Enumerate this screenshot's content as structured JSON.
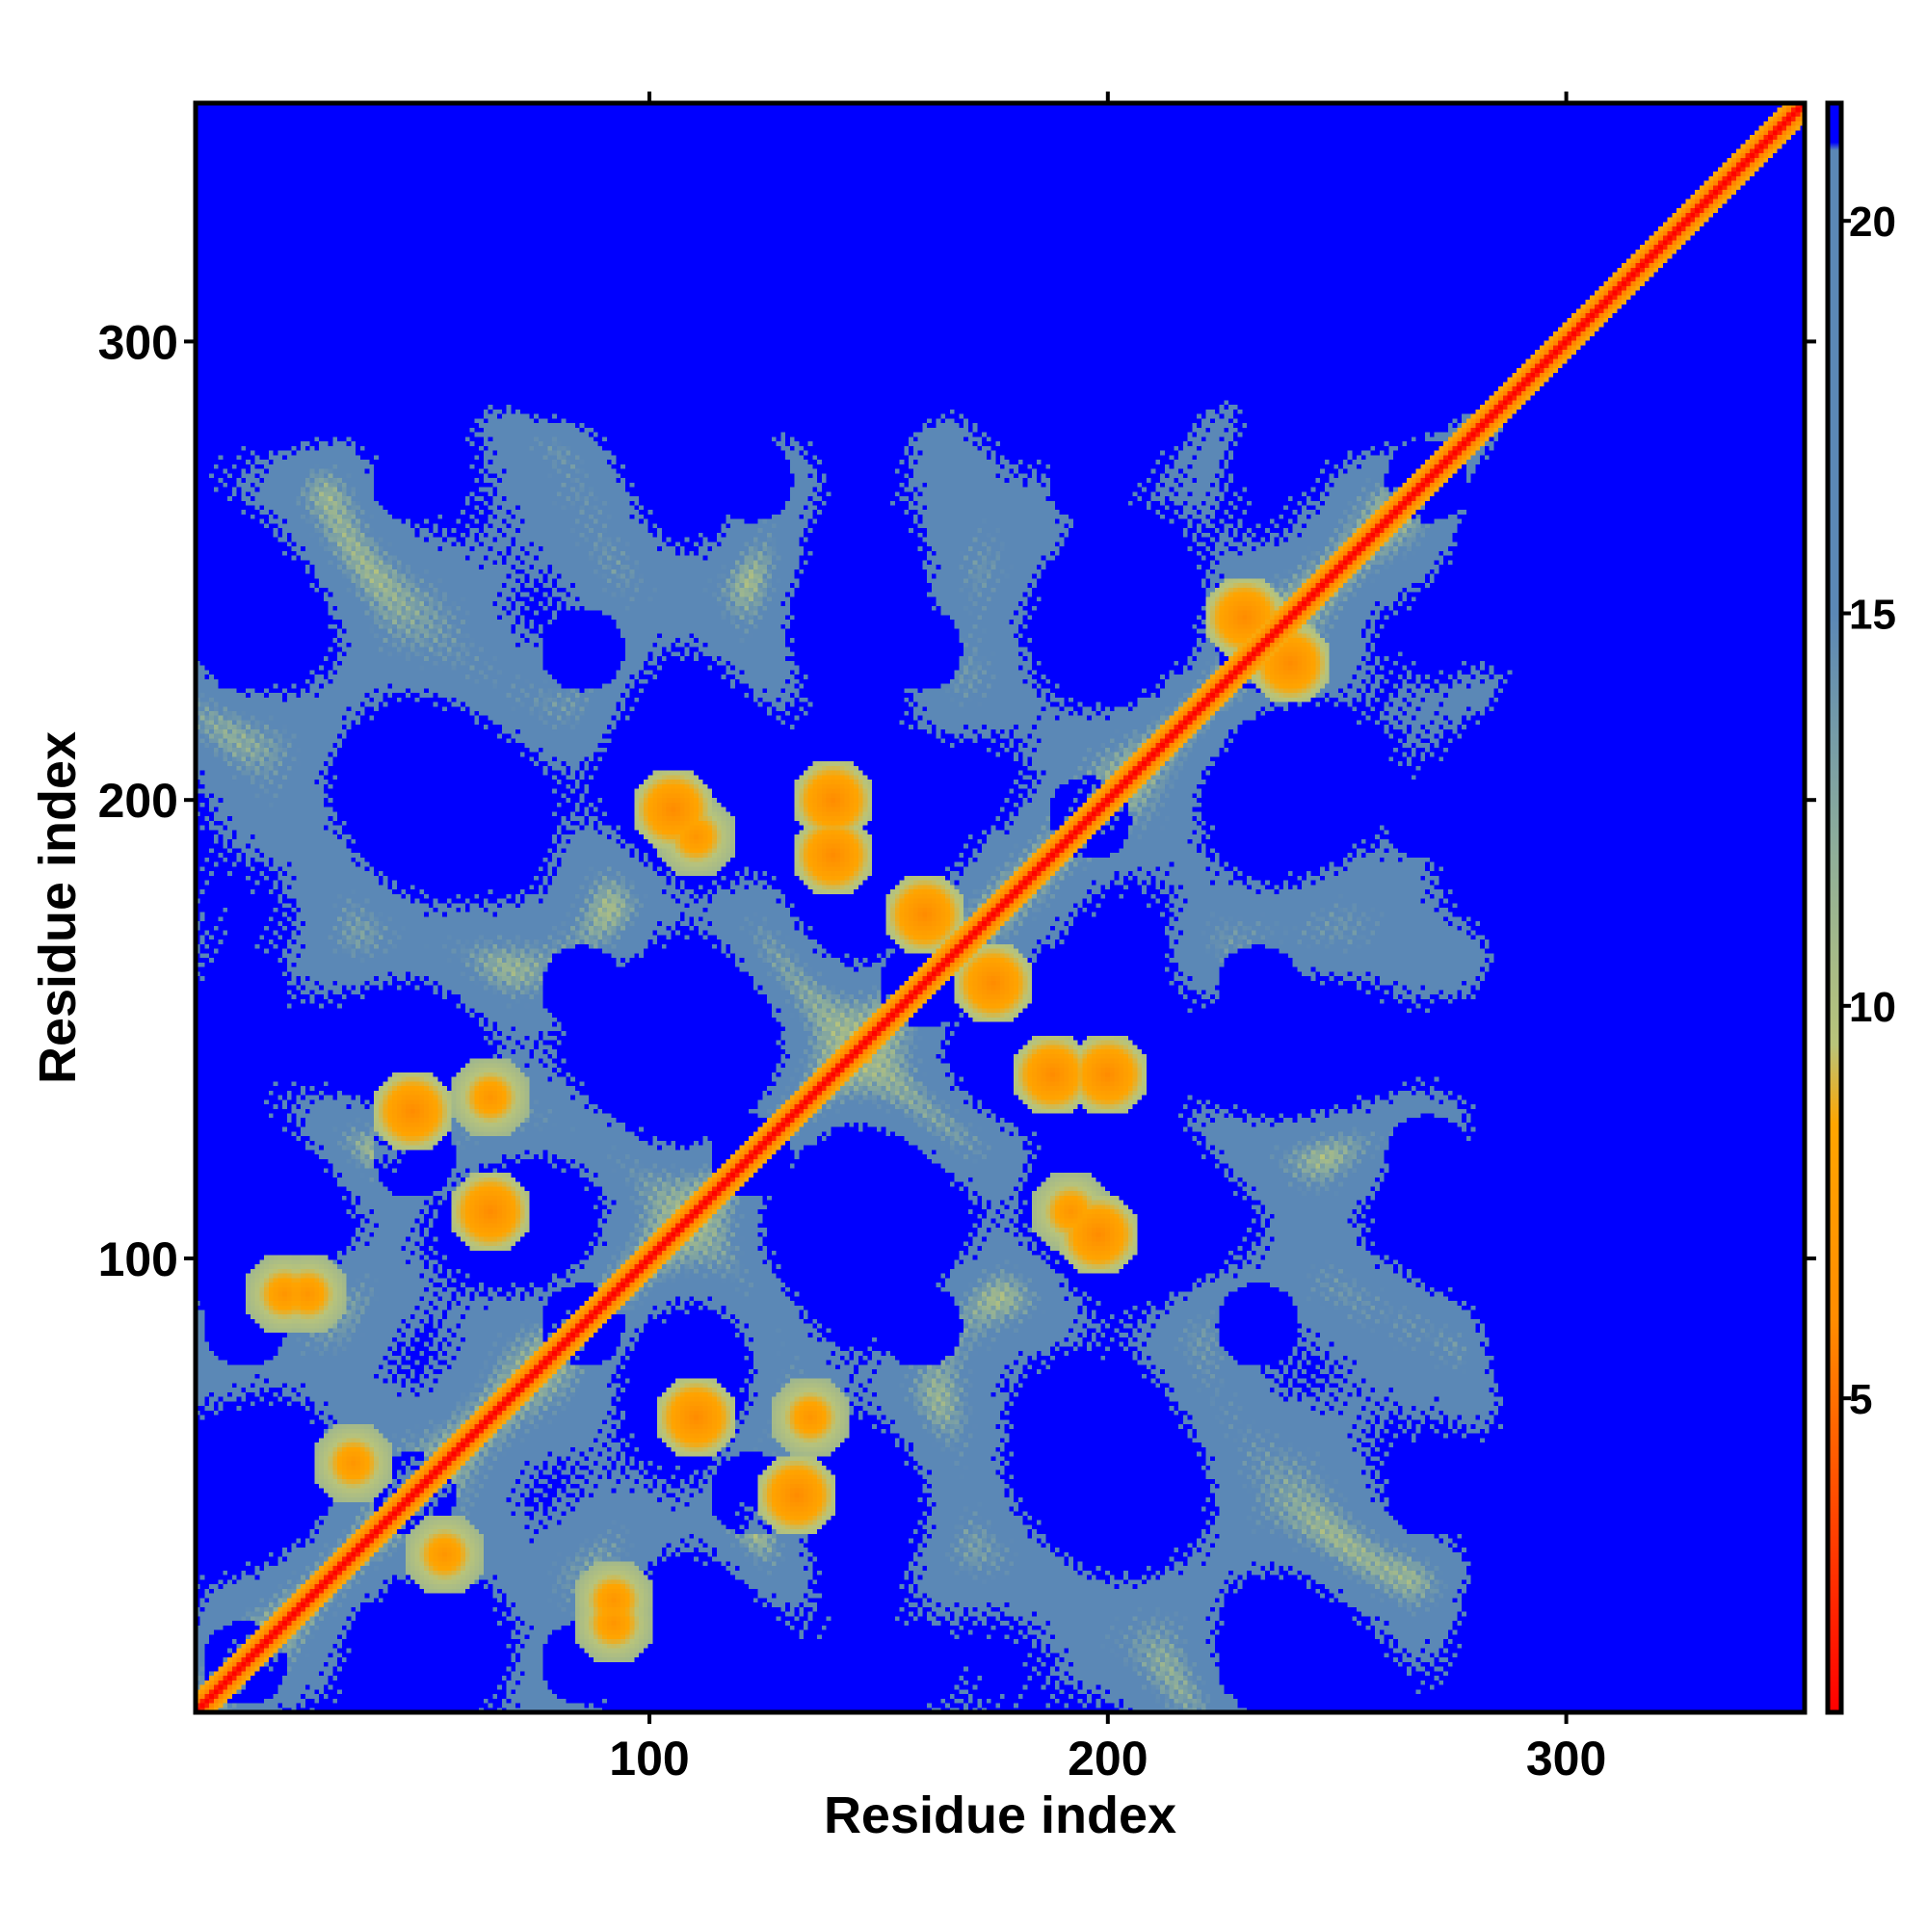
{
  "chart_data": {
    "type": "heatmap",
    "title": "",
    "xlabel": "Residue index",
    "ylabel": "Residue index",
    "n_residues": 352,
    "xlim": [
      1,
      352
    ],
    "ylim": [
      1,
      352
    ],
    "x_ticks": [
      100,
      200,
      300
    ],
    "y_ticks": [
      100,
      200,
      300
    ],
    "x_tick_labels": [
      "100",
      "200",
      "300"
    ],
    "y_tick_labels": [
      "100",
      "200",
      "300"
    ],
    "colorbar": {
      "range": [
        1,
        21.5
      ],
      "ticks": [
        5,
        10,
        15,
        20
      ],
      "tick_labels": [
        "5",
        "10",
        "15",
        "20"
      ],
      "stops": [
        {
          "value": 1,
          "color": "#ff0000"
        },
        {
          "value": 6,
          "color": "#ff8c00"
        },
        {
          "value": 8.5,
          "color": "#ffa500"
        },
        {
          "value": 9.5,
          "color": "#b9c47a"
        },
        {
          "value": 12,
          "color": "#8eae9a"
        },
        {
          "value": 15,
          "color": "#5b88b6"
        },
        {
          "value": 20.9,
          "color": "#5b88b6"
        },
        {
          "value": 21,
          "color": "#0000ff"
        },
        {
          "value": 21.5,
          "color": "#0000ff"
        }
      ]
    },
    "background_value": 21,
    "colors": {
      "background": "#0000ff",
      "contact_region": "#5b88b6",
      "close_contact": "#ffa500",
      "diagonal": "#ff0000"
    },
    "features": {
      "diagonal_band": [
        [
          1,
          1
        ],
        [
          352,
          352
        ]
      ],
      "off_diagonal_contacts": [
        {
          "i": 25,
          "j": 92,
          "value": 7
        },
        {
          "i": 48,
          "j": 132,
          "value": 6
        },
        {
          "i": 65,
          "j": 135,
          "value": 7
        },
        {
          "i": 105,
          "j": 198,
          "value": 6
        },
        {
          "i": 140,
          "j": 200,
          "value": 6
        },
        {
          "i": 92,
          "j": 20,
          "value": 7
        },
        {
          "i": 110,
          "j": 65,
          "value": 6
        },
        {
          "i": 188,
          "j": 140,
          "value": 6
        },
        {
          "i": 192,
          "j": 110,
          "value": 7
        },
        {
          "i": 160,
          "j": 175,
          "value": 6
        },
        {
          "i": 230,
          "j": 240,
          "value": 6
        },
        {
          "i": 35,
          "j": 55,
          "value": 7
        }
      ]
    },
    "grid": false,
    "legend": "none"
  }
}
